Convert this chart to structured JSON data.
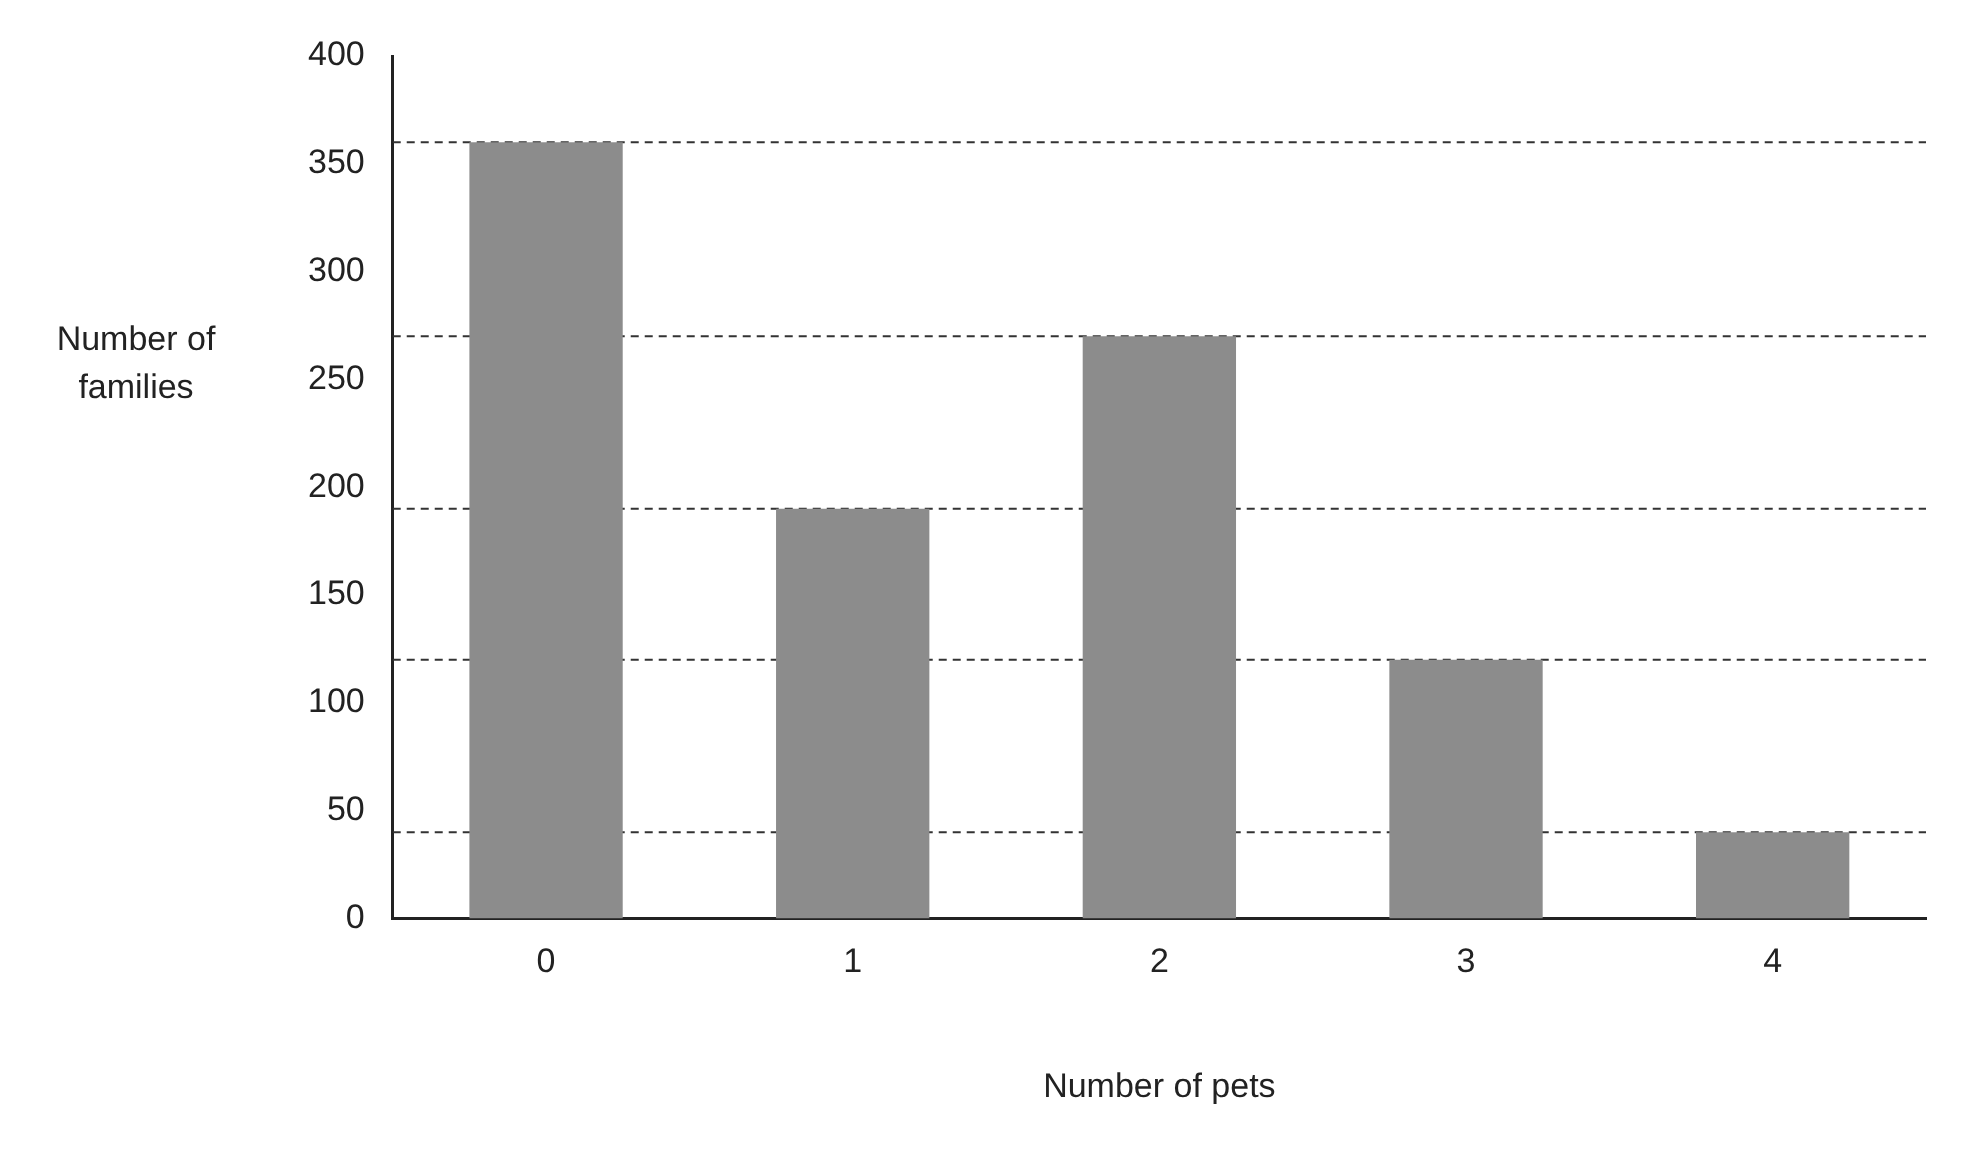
{
  "chart_data": {
    "type": "bar",
    "xlabel": "Number of pets",
    "ylabel": "Number of families",
    "categories": [
      "0",
      "1",
      "2",
      "3",
      "4"
    ],
    "values": [
      360,
      190,
      270,
      120,
      40
    ],
    "color": "#8c8c8c",
    "ylim": [
      0,
      400
    ],
    "yticks": [
      0,
      50,
      100,
      150,
      200,
      250,
      300,
      350,
      400
    ],
    "grid": false,
    "ref_lines": [
      {
        "axis": "y",
        "value": 360,
        "line_style": "dashed",
        "color": "#333333"
      },
      {
        "axis": "y",
        "value": 270,
        "line_style": "dashed",
        "color": "#333333"
      },
      {
        "axis": "y",
        "value": 190,
        "line_style": "dashed",
        "color": "#333333"
      },
      {
        "axis": "y",
        "value": 120,
        "line_style": "dashed",
        "color": "#333333"
      },
      {
        "axis": "y",
        "value": 40,
        "line_style": "dashed",
        "color": "#333333"
      }
    ]
  }
}
